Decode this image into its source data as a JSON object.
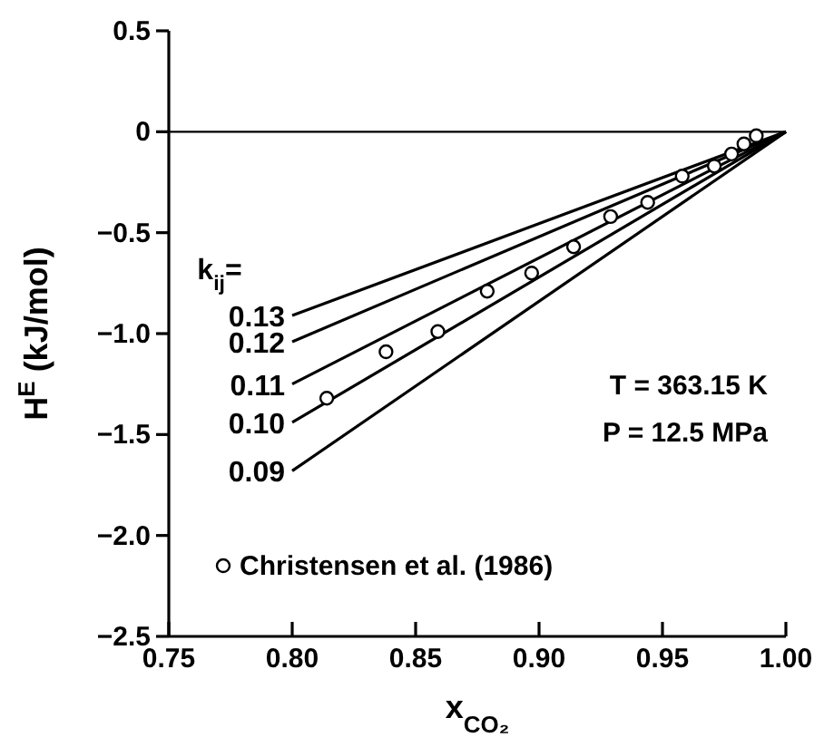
{
  "chart_data": {
    "type": "line",
    "xlabel": "x$_{CO₂}$",
    "ylabel": "H$^{E}$ (kJ/mol)",
    "legend_title": "k$_{ij}$=",
    "xlim": [
      0.75,
      1.0
    ],
    "ylim": [
      -2.5,
      0.5
    ],
    "xticks": [
      {
        "value": 0.75,
        "label": "0.75"
      },
      {
        "value": 0.8,
        "label": "0.80"
      },
      {
        "value": 0.85,
        "label": "0.85"
      },
      {
        "value": 0.9,
        "label": "0.90"
      },
      {
        "value": 0.95,
        "label": "0.95"
      },
      {
        "value": 1.0,
        "label": "1.00"
      }
    ],
    "yticks": [
      {
        "value": 0.5,
        "label": "0.5"
      },
      0,
      {
        "value": -0.5,
        "label": "−0.5"
      },
      {
        "value": -1.0,
        "label": "−1.0"
      },
      {
        "value": -1.5,
        "label": "−1.5"
      },
      {
        "value": -2.0,
        "label": "−2.0"
      },
      {
        "value": -2.5,
        "label": "−2.5"
      }
    ],
    "ref_lines": [
      {
        "axis": "y",
        "value": 0,
        "color": "#000000"
      }
    ],
    "legend": "bottom left",
    "grid": false,
    "annotations": [
      "T = 363.15 K",
      "P = 12.5 MPa"
    ],
    "series": [
      {
        "name": "0.13",
        "color": "#000000",
        "x": [
          0.8,
          1.0
        ],
        "values": [
          -0.91,
          0
        ]
      },
      {
        "name": "0.12",
        "color": "#000000",
        "x": [
          0.8,
          1.0
        ],
        "values": [
          -1.04,
          0
        ]
      },
      {
        "name": "0.11",
        "color": "#000000",
        "x": [
          0.8,
          1.0
        ],
        "values": [
          -1.25,
          0
        ]
      },
      {
        "name": "0.10",
        "color": "#000000",
        "x": [
          0.8,
          1.0
        ],
        "values": [
          -1.44,
          0
        ]
      },
      {
        "name": "0.09",
        "color": "#000000",
        "x": [
          0.8,
          1.0
        ],
        "values": [
          -1.68,
          0
        ]
      },
      {
        "name": "Christensen et al. (1986)",
        "type": "scatter",
        "marker": "circle",
        "color": "#000000",
        "x": [
          0.814,
          0.838,
          0.859,
          0.879,
          0.897,
          0.914,
          0.929,
          0.944,
          0.958,
          0.971,
          0.978,
          0.983,
          0.988
        ],
        "values": [
          -1.32,
          -1.09,
          -0.99,
          -0.79,
          -0.7,
          -0.57,
          -0.42,
          -0.35,
          -0.22,
          -0.17,
          -0.11,
          -0.06,
          -0.02
        ]
      }
    ]
  }
}
